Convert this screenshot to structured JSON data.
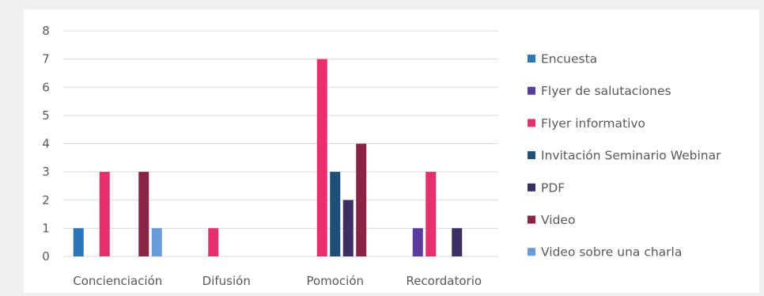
{
  "chart_data": {
    "type": "bar",
    "categories": [
      "Concienciación",
      "Difusión",
      "Pomoción",
      "Recordatorio"
    ],
    "ylim": [
      0,
      8
    ],
    "yticks": [
      0,
      1,
      2,
      3,
      4,
      5,
      6,
      7,
      8
    ],
    "grid": true,
    "legend_position": "right",
    "series": [
      {
        "name": "Encuesta",
        "color": "#2e75b6",
        "values": [
          1,
          0,
          0,
          0
        ]
      },
      {
        "name": "Flyer de salutaciones",
        "color": "#5b3c9e",
        "values": [
          0,
          0,
          0,
          1
        ]
      },
      {
        "name": "Flyer informativo",
        "color": "#e6306e",
        "values": [
          3,
          1,
          7,
          3
        ]
      },
      {
        "name": "Invitación Seminario Webinar",
        "color": "#1f4e79",
        "values": [
          0,
          0,
          3,
          0
        ]
      },
      {
        "name": "PDF",
        "color": "#3b2f63",
        "values": [
          0,
          0,
          2,
          1
        ]
      },
      {
        "name": "Video",
        "color": "#8b2346",
        "values": [
          3,
          0,
          4,
          0
        ]
      },
      {
        "name": "Video sobre una charla",
        "color": "#6a9bd8",
        "values": [
          1,
          0,
          0,
          0
        ]
      }
    ]
  }
}
